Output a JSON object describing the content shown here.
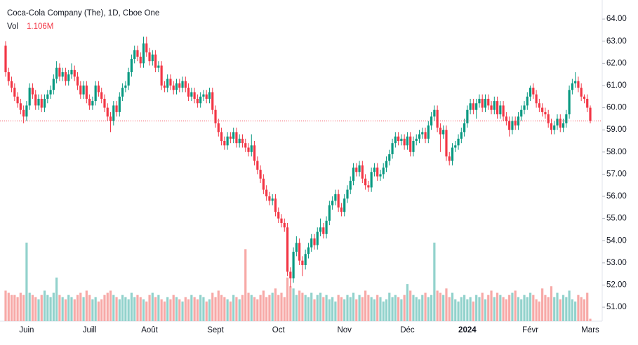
{
  "chart_data": {
    "type": "candlestick",
    "title": "Coca-Cola Company (The), 1D, Cboe One",
    "volume_name": "Vol",
    "volume_label": "1.106M",
    "up_color": "#089981",
    "down_color": "#f23645",
    "volume_up_color": "#92d2cc",
    "volume_down_color": "#f7a9a7",
    "ylim": [
      50.37,
      64.7
    ],
    "yticks": [
      {
        "value": 51,
        "label": "51.00"
      },
      {
        "value": 52,
        "label": "52.00"
      },
      {
        "value": 53,
        "label": "53.00"
      },
      {
        "value": 54,
        "label": "54.00"
      },
      {
        "value": 55,
        "label": "55.00"
      },
      {
        "value": 56,
        "label": "56.00"
      },
      {
        "value": 57,
        "label": "57.00"
      },
      {
        "value": 58,
        "label": "58.00"
      },
      {
        "value": 59,
        "label": "59.00"
      },
      {
        "value": 60,
        "label": "60.00"
      },
      {
        "value": 61,
        "label": "61.00"
      },
      {
        "value": 62,
        "label": "62.00"
      },
      {
        "value": 63,
        "label": "63.00"
      },
      {
        "value": 64,
        "label": "64.00"
      }
    ],
    "y2lim": [
      0,
      45
    ],
    "grid": false,
    "categories": [
      null,
      null,
      null,
      null,
      null,
      null,
      null,
      "Juin",
      null,
      null,
      null,
      null,
      null,
      null,
      null,
      null,
      null,
      null,
      null,
      null,
      null,
      null,
      null,
      null,
      null,
      null,
      null,
      null,
      "Juill",
      null,
      null,
      null,
      null,
      null,
      null,
      null,
      null,
      null,
      null,
      null,
      null,
      null,
      null,
      null,
      null,
      null,
      null,
      null,
      "Août",
      null,
      null,
      null,
      null,
      null,
      null,
      null,
      null,
      null,
      null,
      null,
      null,
      null,
      null,
      null,
      null,
      null,
      null,
      null,
      null,
      null,
      "Sept",
      null,
      null,
      null,
      null,
      null,
      null,
      null,
      null,
      null,
      null,
      null,
      null,
      null,
      null,
      null,
      null,
      null,
      null,
      null,
      null,
      "Oct",
      null,
      null,
      null,
      null,
      null,
      null,
      null,
      null,
      null,
      null,
      null,
      null,
      null,
      null,
      null,
      null,
      null,
      null,
      null,
      null,
      null,
      "Nov",
      null,
      null,
      null,
      null,
      null,
      null,
      null,
      null,
      null,
      null,
      null,
      null,
      null,
      null,
      null,
      null,
      null,
      null,
      null,
      null,
      "Déc",
      null,
      null,
      null,
      null,
      null,
      null,
      null,
      null,
      null,
      null,
      null,
      null,
      null,
      null,
      null,
      null,
      null,
      null,
      null,
      "2024",
      null,
      null,
      null,
      null,
      null,
      null,
      null,
      null,
      null,
      null,
      null,
      null,
      null,
      null,
      null,
      null,
      null,
      null,
      null,
      null,
      "Févr",
      null,
      null,
      null,
      null,
      null,
      null,
      null,
      null,
      null,
      null,
      null,
      null,
      null,
      null,
      null,
      null,
      null,
      null,
      null,
      "Mars"
    ],
    "ohlc": [
      [
        62.8,
        63.0,
        61.4,
        61.6
      ],
      [
        61.6,
        61.8,
        61.0,
        61.2
      ],
      [
        61.2,
        61.4,
        60.7,
        60.9
      ],
      [
        60.9,
        61.1,
        60.3,
        60.5
      ],
      [
        60.5,
        60.7,
        60.0,
        60.2
      ],
      [
        60.2,
        60.4,
        59.7,
        59.9
      ],
      [
        59.9,
        60.1,
        59.3,
        59.6
      ],
      [
        59.6,
        60.3,
        59.4,
        60.1
      ],
      [
        60.1,
        61.1,
        59.9,
        60.9
      ],
      [
        60.9,
        61.1,
        60.4,
        60.6
      ],
      [
        60.6,
        60.8,
        59.9,
        60.1
      ],
      [
        60.1,
        60.6,
        59.9,
        60.4
      ],
      [
        60.4,
        60.6,
        59.8,
        60.0
      ],
      [
        60.0,
        60.6,
        59.8,
        60.4
      ],
      [
        60.4,
        60.8,
        60.2,
        60.6
      ],
      [
        60.6,
        61.0,
        60.4,
        60.8
      ],
      [
        60.8,
        61.5,
        60.6,
        61.3
      ],
      [
        61.3,
        62.1,
        61.1,
        61.8
      ],
      [
        61.8,
        62.0,
        61.2,
        61.4
      ],
      [
        61.4,
        61.8,
        61.2,
        61.6
      ],
      [
        61.6,
        61.8,
        61.0,
        61.2
      ],
      [
        61.2,
        61.7,
        61.0,
        61.5
      ],
      [
        61.5,
        62.0,
        61.3,
        61.7
      ],
      [
        61.7,
        61.9,
        61.2,
        61.4
      ],
      [
        61.4,
        61.6,
        60.8,
        61.0
      ],
      [
        61.0,
        61.2,
        60.4,
        60.6
      ],
      [
        60.6,
        61.2,
        60.4,
        61.0
      ],
      [
        61.0,
        61.2,
        60.2,
        60.4
      ],
      [
        60.4,
        60.6,
        59.9,
        60.1
      ],
      [
        60.1,
        60.5,
        59.9,
        60.3
      ],
      [
        60.3,
        61.2,
        60.1,
        61.0
      ],
      [
        61.0,
        61.2,
        60.5,
        60.7
      ],
      [
        60.7,
        60.9,
        60.2,
        60.4
      ],
      [
        60.4,
        60.6,
        59.8,
        60.0
      ],
      [
        60.0,
        60.2,
        59.4,
        59.6
      ],
      [
        59.6,
        59.8,
        58.9,
        59.4
      ],
      [
        59.4,
        60.3,
        59.2,
        60.1
      ],
      [
        60.1,
        60.3,
        59.6,
        59.8
      ],
      [
        59.8,
        60.7,
        59.6,
        60.5
      ],
      [
        60.5,
        61.1,
        60.3,
        60.9
      ],
      [
        60.9,
        61.2,
        60.7,
        61.0
      ],
      [
        61.0,
        61.8,
        60.8,
        61.6
      ],
      [
        61.6,
        62.4,
        61.4,
        62.2
      ],
      [
        62.2,
        62.8,
        62.0,
        62.6
      ],
      [
        62.6,
        62.8,
        62.1,
        62.3
      ],
      [
        62.3,
        62.5,
        61.8,
        62.0
      ],
      [
        62.0,
        63.2,
        61.8,
        62.9
      ],
      [
        62.9,
        63.2,
        62.3,
        62.5
      ],
      [
        62.5,
        62.7,
        61.9,
        62.1
      ],
      [
        62.1,
        62.6,
        61.9,
        62.4
      ],
      [
        62.4,
        62.6,
        61.6,
        61.8
      ],
      [
        61.8,
        62.1,
        61.6,
        61.9
      ],
      [
        61.9,
        62.1,
        60.8,
        61.0
      ],
      [
        61.0,
        61.2,
        60.7,
        60.9
      ],
      [
        60.9,
        61.5,
        60.7,
        61.3
      ],
      [
        61.3,
        61.5,
        60.8,
        61.0
      ],
      [
        61.0,
        61.2,
        60.6,
        60.8
      ],
      [
        60.8,
        61.3,
        60.6,
        61.1
      ],
      [
        61.1,
        61.3,
        60.7,
        60.9
      ],
      [
        60.9,
        61.4,
        60.7,
        61.2
      ],
      [
        61.2,
        61.4,
        60.7,
        60.9
      ],
      [
        60.9,
        61.1,
        60.3,
        60.5
      ],
      [
        60.5,
        60.9,
        60.3,
        60.7
      ],
      [
        60.7,
        60.9,
        60.2,
        60.4
      ],
      [
        60.4,
        60.6,
        60.0,
        60.2
      ],
      [
        60.2,
        60.7,
        60.0,
        60.5
      ],
      [
        60.5,
        60.8,
        60.3,
        60.6
      ],
      [
        60.6,
        60.8,
        60.2,
        60.4
      ],
      [
        60.4,
        60.9,
        60.2,
        60.7
      ],
      [
        60.7,
        60.9,
        59.7,
        59.9
      ],
      [
        59.9,
        60.1,
        59.1,
        59.3
      ],
      [
        59.3,
        59.5,
        58.7,
        58.9
      ],
      [
        58.9,
        59.1,
        58.3,
        58.5
      ],
      [
        58.5,
        58.7,
        58.1,
        58.3
      ],
      [
        58.3,
        58.9,
        58.1,
        58.7
      ],
      [
        58.7,
        58.9,
        58.4,
        58.6
      ],
      [
        58.6,
        59.1,
        58.4,
        58.9
      ],
      [
        58.9,
        59.1,
        58.2,
        58.4
      ],
      [
        58.4,
        58.8,
        58.2,
        58.6
      ],
      [
        58.6,
        58.8,
        58.2,
        58.4
      ],
      [
        58.4,
        58.6,
        58.0,
        58.2
      ],
      [
        58.2,
        58.4,
        57.8,
        58.0
      ],
      [
        58.0,
        58.8,
        57.8,
        58.3
      ],
      [
        58.3,
        58.5,
        57.4,
        57.6
      ],
      [
        57.6,
        57.8,
        57.0,
        57.2
      ],
      [
        57.2,
        57.4,
        56.6,
        56.8
      ],
      [
        56.8,
        57.0,
        56.1,
        56.3
      ],
      [
        56.3,
        56.5,
        55.8,
        56.0
      ],
      [
        56.0,
        56.2,
        55.6,
        55.8
      ],
      [
        55.8,
        56.1,
        55.6,
        55.9
      ],
      [
        55.9,
        56.1,
        55.1,
        55.3
      ],
      [
        55.3,
        55.5,
        54.8,
        55.0
      ],
      [
        55.0,
        55.2,
        54.6,
        54.8
      ],
      [
        54.8,
        55.0,
        54.4,
        54.6
      ],
      [
        54.6,
        54.8,
        52.4,
        52.6
      ],
      [
        52.6,
        52.8,
        51.9,
        52.3
      ],
      [
        52.3,
        53.7,
        52.1,
        53.5
      ],
      [
        53.5,
        54.2,
        53.3,
        53.9
      ],
      [
        53.9,
        54.1,
        52.9,
        53.1
      ],
      [
        53.1,
        53.3,
        52.4,
        52.9
      ],
      [
        52.9,
        53.6,
        52.7,
        53.4
      ],
      [
        53.4,
        53.9,
        53.2,
        53.7
      ],
      [
        53.7,
        54.3,
        53.5,
        54.1
      ],
      [
        54.1,
        54.3,
        53.6,
        53.8
      ],
      [
        53.8,
        54.6,
        53.6,
        54.4
      ],
      [
        54.4,
        55.0,
        54.2,
        54.6
      ],
      [
        54.6,
        54.8,
        54.1,
        54.3
      ],
      [
        54.3,
        55.1,
        54.1,
        54.9
      ],
      [
        54.9,
        55.8,
        54.7,
        55.6
      ],
      [
        55.6,
        56.0,
        55.4,
        55.8
      ],
      [
        55.8,
        56.3,
        55.6,
        56.1
      ],
      [
        56.1,
        56.3,
        55.3,
        55.5
      ],
      [
        55.5,
        55.7,
        55.1,
        55.3
      ],
      [
        55.3,
        56.1,
        55.1,
        55.9
      ],
      [
        55.9,
        56.5,
        55.7,
        56.3
      ],
      [
        56.3,
        56.9,
        56.1,
        56.7
      ],
      [
        56.7,
        57.5,
        56.5,
        57.3
      ],
      [
        57.3,
        57.5,
        56.9,
        57.1
      ],
      [
        57.1,
        57.6,
        56.9,
        57.4
      ],
      [
        57.4,
        57.6,
        56.6,
        56.8
      ],
      [
        56.8,
        57.0,
        56.3,
        56.5
      ],
      [
        56.5,
        56.7,
        56.2,
        56.4
      ],
      [
        56.4,
        57.3,
        56.2,
        57.1
      ],
      [
        57.1,
        57.5,
        56.9,
        57.3
      ],
      [
        57.3,
        57.5,
        56.7,
        56.9
      ],
      [
        56.9,
        57.2,
        56.7,
        57.0
      ],
      [
        57.0,
        57.5,
        56.8,
        57.3
      ],
      [
        57.3,
        57.8,
        57.1,
        57.6
      ],
      [
        57.6,
        58.1,
        57.4,
        57.9
      ],
      [
        57.9,
        58.6,
        57.7,
        58.4
      ],
      [
        58.4,
        58.9,
        58.2,
        58.7
      ],
      [
        58.7,
        58.9,
        58.3,
        58.5
      ],
      [
        58.5,
        58.8,
        58.3,
        58.6
      ],
      [
        58.6,
        58.8,
        58.1,
        58.3
      ],
      [
        58.3,
        58.9,
        58.1,
        58.7
      ],
      [
        58.7,
        58.9,
        57.8,
        58.0
      ],
      [
        58.0,
        58.7,
        57.8,
        58.5
      ],
      [
        58.5,
        58.8,
        58.3,
        58.6
      ],
      [
        58.6,
        59.0,
        58.4,
        58.8
      ],
      [
        58.8,
        59.1,
        58.6,
        58.9
      ],
      [
        58.9,
        59.1,
        58.4,
        58.6
      ],
      [
        58.6,
        59.4,
        58.4,
        59.2
      ],
      [
        59.2,
        59.8,
        59.0,
        59.6
      ],
      [
        59.6,
        60.1,
        59.4,
        59.9
      ],
      [
        59.9,
        60.1,
        58.9,
        59.1
      ],
      [
        59.1,
        59.3,
        58.0,
        58.8
      ],
      [
        58.8,
        59.2,
        58.6,
        59.0
      ],
      [
        59.0,
        59.2,
        57.6,
        57.8
      ],
      [
        57.8,
        58.0,
        57.4,
        57.6
      ],
      [
        57.6,
        58.4,
        57.4,
        58.2
      ],
      [
        58.2,
        58.5,
        58.0,
        58.3
      ],
      [
        58.3,
        58.8,
        58.1,
        58.6
      ],
      [
        58.6,
        59.1,
        58.4,
        58.9
      ],
      [
        58.9,
        59.5,
        58.7,
        59.3
      ],
      [
        59.3,
        60.1,
        59.1,
        59.9
      ],
      [
        59.9,
        60.4,
        59.7,
        60.2
      ],
      [
        60.2,
        60.4,
        59.7,
        59.9
      ],
      [
        59.9,
        60.4,
        59.5,
        60.2
      ],
      [
        60.2,
        60.6,
        60.0,
        60.4
      ],
      [
        60.4,
        60.6,
        59.8,
        60.0
      ],
      [
        60.0,
        60.6,
        59.8,
        60.4
      ],
      [
        60.4,
        60.6,
        59.9,
        60.1
      ],
      [
        60.1,
        60.3,
        59.7,
        59.9
      ],
      [
        59.9,
        60.5,
        59.7,
        60.3
      ],
      [
        60.3,
        60.5,
        59.5,
        59.7
      ],
      [
        59.7,
        60.3,
        59.5,
        60.1
      ],
      [
        60.1,
        60.3,
        59.4,
        59.6
      ],
      [
        59.6,
        59.8,
        59.2,
        59.4
      ],
      [
        59.4,
        59.6,
        58.7,
        59.0
      ],
      [
        59.0,
        59.6,
        58.8,
        59.4
      ],
      [
        59.4,
        59.6,
        59.0,
        59.2
      ],
      [
        59.2,
        59.8,
        59.0,
        59.6
      ],
      [
        59.6,
        60.1,
        59.4,
        59.9
      ],
      [
        59.9,
        60.3,
        59.7,
        60.1
      ],
      [
        60.1,
        60.7,
        59.9,
        60.5
      ],
      [
        60.5,
        61.0,
        60.3,
        60.9
      ],
      [
        60.9,
        61.1,
        60.4,
        60.6
      ],
      [
        60.6,
        60.8,
        60.0,
        60.2
      ],
      [
        60.2,
        60.4,
        59.8,
        60.0
      ],
      [
        60.0,
        60.2,
        59.6,
        59.8
      ],
      [
        59.8,
        60.0,
        59.5,
        59.7
      ],
      [
        59.7,
        59.9,
        59.1,
        59.3
      ],
      [
        59.3,
        59.5,
        58.8,
        59.0
      ],
      [
        59.0,
        59.4,
        58.8,
        59.2
      ],
      [
        59.2,
        59.7,
        59.0,
        59.5
      ],
      [
        59.5,
        59.7,
        58.9,
        59.1
      ],
      [
        59.1,
        59.5,
        58.9,
        59.3
      ],
      [
        59.3,
        59.9,
        59.1,
        59.7
      ],
      [
        59.7,
        61.0,
        59.5,
        60.8
      ],
      [
        60.8,
        61.3,
        60.6,
        61.1
      ],
      [
        61.1,
        61.6,
        60.9,
        61.2
      ],
      [
        61.2,
        61.4,
        60.7,
        60.9
      ],
      [
        60.9,
        61.1,
        60.3,
        60.5
      ],
      [
        60.5,
        60.6,
        60.2,
        60.4
      ],
      [
        60.4,
        60.6,
        59.8,
        60.0
      ],
      [
        60.0,
        60.1,
        59.3,
        59.4
      ]
    ],
    "volume": [
      14,
      13,
      12,
      12,
      11,
      13,
      12,
      36,
      13,
      12,
      11,
      10,
      12,
      14,
      12,
      11,
      13,
      20,
      12,
      11,
      10,
      12,
      11,
      10,
      12,
      13,
      11,
      14,
      12,
      10,
      11,
      9,
      10,
      12,
      13,
      14,
      12,
      11,
      10,
      12,
      11,
      10,
      13,
      11,
      12,
      11,
      10,
      9,
      12,
      13,
      11,
      12,
      10,
      9,
      11,
      10,
      12,
      11,
      10,
      9,
      11,
      10,
      12,
      11,
      10,
      12,
      11,
      9,
      10,
      13,
      11,
      14,
      12,
      11,
      10,
      9,
      12,
      11,
      10,
      12,
      33,
      13,
      12,
      11,
      10,
      12,
      14,
      11,
      12,
      13,
      15,
      12,
      13,
      11,
      20,
      16,
      15,
      12,
      14,
      13,
      12,
      11,
      13,
      10,
      12,
      13,
      11,
      12,
      10,
      11,
      9,
      12,
      11,
      10,
      12,
      11,
      13,
      10,
      12,
      11,
      14,
      12,
      11,
      10,
      12,
      11,
      9,
      10,
      13,
      11,
      12,
      11,
      10,
      12,
      17,
      14,
      12,
      11,
      10,
      12,
      13,
      11,
      12,
      36,
      14,
      13,
      12,
      15,
      11,
      13,
      10,
      9,
      11,
      12,
      10,
      11,
      9,
      12,
      11,
      13,
      10,
      12,
      14,
      11,
      13,
      12,
      11,
      10,
      12,
      13,
      14,
      11,
      10,
      12,
      11,
      13,
      12,
      10,
      9,
      15,
      12,
      11,
      16,
      11,
      13,
      10,
      12,
      11,
      14,
      10,
      9,
      12,
      11,
      10,
      13,
      1.106
    ]
  }
}
